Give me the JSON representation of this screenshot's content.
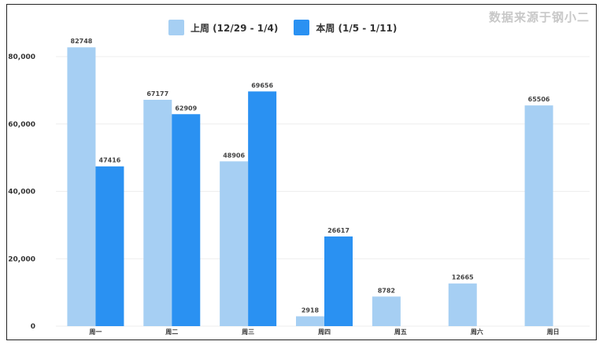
{
  "source_label": "数据来源于钢小二",
  "colors": {
    "last_week": "#a6cff3",
    "this_week": "#2a91f2",
    "grid": "#eeeeee"
  },
  "chart_data": {
    "type": "bar",
    "categories": [
      "周一",
      "周二",
      "周三",
      "周四",
      "周五",
      "周六",
      "周日"
    ],
    "series": [
      {
        "name": "上周 (12/29 - 1/4)",
        "values": [
          82748,
          67177,
          48906,
          2918,
          8782,
          12665,
          65506
        ]
      },
      {
        "name": "本周 (1/5 - 1/11)",
        "values": [
          47416,
          62909,
          69656,
          26617,
          null,
          null,
          null
        ]
      }
    ],
    "ylim": [
      0,
      80000
    ],
    "yticks": [
      0,
      20000,
      40000,
      60000,
      80000
    ],
    "ytick_labels": [
      "0",
      "20,000",
      "40,000",
      "60,000",
      "80,000"
    ],
    "legend": "top-center",
    "grid": true
  }
}
